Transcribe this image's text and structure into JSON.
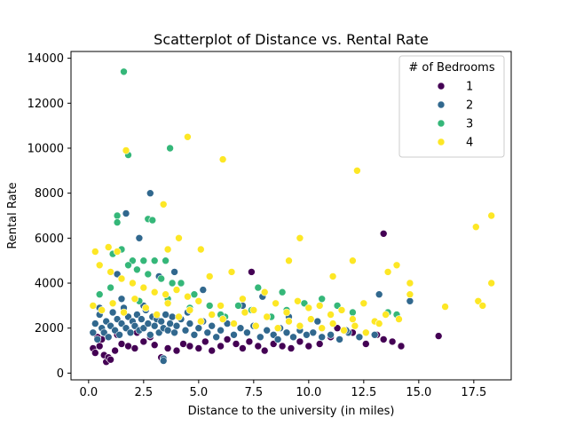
{
  "chart_data": {
    "type": "scatter",
    "title": "Scatterplot of Distance vs. Rental Rate",
    "xlabel": "Distance to the university (in miles)",
    "ylabel": "Rental Rate",
    "xlim": [
      -0.8,
      19.2
    ],
    "ylim": [
      -300,
      14300
    ],
    "xticks": [
      0.0,
      2.5,
      5.0,
      7.5,
      10.0,
      12.5,
      15.0,
      17.5
    ],
    "xtick_labels": [
      "0.0",
      "2.5",
      "5.0",
      "7.5",
      "10.0",
      "12.5",
      "15.0",
      "17.5"
    ],
    "yticks": [
      0,
      2000,
      4000,
      6000,
      8000,
      10000,
      12000,
      14000
    ],
    "ytick_labels": [
      "0",
      "2000",
      "4000",
      "6000",
      "8000",
      "10000",
      "12000",
      "14000"
    ],
    "grid": false,
    "legend": {
      "title": "# of Bedrooms",
      "placement": "top-right",
      "entries": [
        "1",
        "2",
        "3",
        "4"
      ]
    },
    "colors": {
      "1": "#440154",
      "2": "#31688e",
      "3": "#35b779",
      "4": "#fde725"
    },
    "series": [
      {
        "name": "1",
        "points": [
          [
            0.2,
            1100
          ],
          [
            0.3,
            900
          ],
          [
            0.5,
            1200
          ],
          [
            0.6,
            1500
          ],
          [
            0.7,
            800
          ],
          [
            0.8,
            500
          ],
          [
            0.9,
            700
          ],
          [
            1.0,
            600
          ],
          [
            1.2,
            1000
          ],
          [
            1.5,
            1300
          ],
          [
            1.8,
            1200
          ],
          [
            2.1,
            1100
          ],
          [
            2.5,
            1400
          ],
          [
            2.8,
            1600
          ],
          [
            3.0,
            1250
          ],
          [
            3.3,
            700
          ],
          [
            3.6,
            1100
          ],
          [
            4.0,
            1000
          ],
          [
            4.3,
            1300
          ],
          [
            4.6,
            1200
          ],
          [
            5.0,
            1100
          ],
          [
            5.3,
            1400
          ],
          [
            5.6,
            1000
          ],
          [
            6.0,
            1200
          ],
          [
            6.3,
            1500
          ],
          [
            6.7,
            1300
          ],
          [
            7.0,
            1100
          ],
          [
            7.3,
            1400
          ],
          [
            7.4,
            4500
          ],
          [
            7.7,
            1200
          ],
          [
            8.0,
            1000
          ],
          [
            8.4,
            1300
          ],
          [
            8.8,
            1200
          ],
          [
            9.2,
            1100
          ],
          [
            9.6,
            1400
          ],
          [
            10.0,
            1200
          ],
          [
            10.5,
            1300
          ],
          [
            11.0,
            1600
          ],
          [
            11.3,
            2000
          ],
          [
            12.0,
            1800
          ],
          [
            12.6,
            1300
          ],
          [
            13.1,
            1700
          ],
          [
            13.4,
            1500
          ],
          [
            13.4,
            6200
          ],
          [
            13.8,
            1400
          ],
          [
            14.2,
            1200
          ],
          [
            15.9,
            1650
          ],
          [
            0.4,
            1600
          ],
          [
            1.3,
            1700
          ],
          [
            2.2,
            1800
          ]
        ]
      },
      {
        "name": "2",
        "points": [
          [
            0.2,
            1800
          ],
          [
            0.3,
            2200
          ],
          [
            0.4,
            1500
          ],
          [
            0.5,
            2600
          ],
          [
            0.6,
            2000
          ],
          [
            0.7,
            1800
          ],
          [
            0.8,
            2300
          ],
          [
            0.9,
            1600
          ],
          [
            1.0,
            2100
          ],
          [
            1.1,
            2700
          ],
          [
            1.2,
            1900
          ],
          [
            1.3,
            2400
          ],
          [
            1.4,
            1700
          ],
          [
            1.5,
            2200
          ],
          [
            1.6,
            2900
          ],
          [
            1.7,
            2000
          ],
          [
            1.8,
            2500
          ],
          [
            1.9,
            1800
          ],
          [
            2.0,
            2300
          ],
          [
            2.1,
            2100
          ],
          [
            2.2,
            2600
          ],
          [
            2.3,
            1900
          ],
          [
            2.4,
            2400
          ],
          [
            2.5,
            2000
          ],
          [
            2.6,
            2800
          ],
          [
            2.7,
            2200
          ],
          [
            2.8,
            1700
          ],
          [
            2.9,
            2500
          ],
          [
            3.0,
            2100
          ],
          [
            3.1,
            2400
          ],
          [
            3.2,
            1800
          ],
          [
            3.3,
            2300
          ],
          [
            3.4,
            2000
          ],
          [
            3.5,
            2600
          ],
          [
            3.6,
            1900
          ],
          [
            3.7,
            2200
          ],
          [
            3.8,
            2500
          ],
          [
            3.9,
            1800
          ],
          [
            4.0,
            2100
          ],
          [
            4.2,
            2400
          ],
          [
            4.4,
            1900
          ],
          [
            4.6,
            2200
          ],
          [
            4.8,
            1700
          ],
          [
            5.0,
            2000
          ],
          [
            5.2,
            2300
          ],
          [
            5.4,
            1800
          ],
          [
            5.6,
            2100
          ],
          [
            5.8,
            1600
          ],
          [
            6.0,
            1900
          ],
          [
            6.3,
            2200
          ],
          [
            6.6,
            1700
          ],
          [
            6.9,
            2000
          ],
          [
            7.2,
            1800
          ],
          [
            7.5,
            2100
          ],
          [
            7.8,
            1600
          ],
          [
            8.1,
            1900
          ],
          [
            8.4,
            1700
          ],
          [
            8.7,
            2000
          ],
          [
            9.0,
            1800
          ],
          [
            9.3,
            1600
          ],
          [
            9.6,
            1900
          ],
          [
            9.9,
            1700
          ],
          [
            10.2,
            1800
          ],
          [
            10.6,
            1600
          ],
          [
            11.0,
            1700
          ],
          [
            11.4,
            1500
          ],
          [
            11.8,
            1800
          ],
          [
            12.3,
            1600
          ],
          [
            13.0,
            1700
          ],
          [
            13.2,
            3500
          ],
          [
            1.3,
            4400
          ],
          [
            1.7,
            7100
          ],
          [
            2.3,
            6000
          ],
          [
            2.8,
            8000
          ],
          [
            3.2,
            4300
          ],
          [
            3.4,
            650
          ],
          [
            3.4,
            550
          ],
          [
            3.9,
            4500
          ],
          [
            5.2,
            3700
          ],
          [
            7.0,
            3000
          ],
          [
            7.9,
            3400
          ],
          [
            8.6,
            1500
          ],
          [
            9.1,
            2500
          ],
          [
            10.4,
            2300
          ],
          [
            11.7,
            1900
          ],
          [
            14.6,
            3200
          ],
          [
            0.5,
            2900
          ],
          [
            1.5,
            3300
          ],
          [
            2.5,
            3000
          ],
          [
            4.5,
            2700
          ]
        ]
      },
      {
        "name": "3",
        "points": [
          [
            1.6,
            13400
          ],
          [
            1.8,
            9700
          ],
          [
            3.7,
            10000
          ],
          [
            1.3,
            7000
          ],
          [
            1.3,
            6700
          ],
          [
            2.7,
            6850
          ],
          [
            2.9,
            6800
          ],
          [
            1.5,
            5500
          ],
          [
            2.0,
            5000
          ],
          [
            2.5,
            5000
          ],
          [
            3.0,
            5000
          ],
          [
            3.5,
            5000
          ],
          [
            1.1,
            5300
          ],
          [
            1.8,
            4800
          ],
          [
            2.2,
            4600
          ],
          [
            2.7,
            4400
          ],
          [
            3.3,
            4200
          ],
          [
            3.8,
            4000
          ],
          [
            4.2,
            4000
          ],
          [
            4.8,
            3500
          ],
          [
            5.5,
            3000
          ],
          [
            6.2,
            2500
          ],
          [
            6.8,
            3000
          ],
          [
            7.4,
            2800
          ],
          [
            7.7,
            3800
          ],
          [
            8.3,
            2500
          ],
          [
            9.0,
            2800
          ],
          [
            9.8,
            3100
          ],
          [
            10.6,
            3300
          ],
          [
            11.3,
            3000
          ],
          [
            12.0,
            2700
          ],
          [
            13.6,
            2700
          ],
          [
            14.0,
            2600
          ],
          [
            0.5,
            3500
          ],
          [
            1.0,
            3800
          ],
          [
            2.3,
            3200
          ],
          [
            3.6,
            3300
          ],
          [
            4.6,
            2900
          ],
          [
            6.0,
            2600
          ],
          [
            8.8,
            3600
          ]
        ]
      },
      {
        "name": "4",
        "points": [
          [
            1.7,
            9900
          ],
          [
            4.5,
            10500
          ],
          [
            6.1,
            9500
          ],
          [
            12.2,
            9000
          ],
          [
            3.4,
            7500
          ],
          [
            18.3,
            7000
          ],
          [
            17.6,
            6500
          ],
          [
            9.6,
            6000
          ],
          [
            4.1,
            6000
          ],
          [
            0.3,
            5400
          ],
          [
            0.9,
            5600
          ],
          [
            1.3,
            5400
          ],
          [
            3.6,
            5500
          ],
          [
            5.1,
            5500
          ],
          [
            12.0,
            5000
          ],
          [
            14.0,
            4800
          ],
          [
            13.6,
            4500
          ],
          [
            11.1,
            4300
          ],
          [
            9.1,
            5000
          ],
          [
            18.3,
            4000
          ],
          [
            14.6,
            4000
          ],
          [
            0.5,
            4800
          ],
          [
            1.0,
            4500
          ],
          [
            1.5,
            4200
          ],
          [
            2.0,
            4000
          ],
          [
            2.5,
            3800
          ],
          [
            3.0,
            3600
          ],
          [
            3.5,
            3500
          ],
          [
            4.0,
            3700
          ],
          [
            4.5,
            3400
          ],
          [
            5.0,
            3200
          ],
          [
            5.5,
            4300
          ],
          [
            6.0,
            3000
          ],
          [
            6.5,
            4500
          ],
          [
            7.0,
            3300
          ],
          [
            7.5,
            2800
          ],
          [
            8.0,
            3600
          ],
          [
            8.5,
            3100
          ],
          [
            9.0,
            2700
          ],
          [
            9.5,
            3200
          ],
          [
            10.0,
            2900
          ],
          [
            10.5,
            3000
          ],
          [
            11.0,
            2600
          ],
          [
            11.5,
            2800
          ],
          [
            12.0,
            2400
          ],
          [
            12.5,
            3100
          ],
          [
            13.0,
            2300
          ],
          [
            13.5,
            2600
          ],
          [
            14.6,
            3500
          ],
          [
            16.2,
            2950
          ],
          [
            17.7,
            3200
          ],
          [
            17.9,
            3000
          ],
          [
            0.2,
            3000
          ],
          [
            0.6,
            2800
          ],
          [
            1.1,
            3100
          ],
          [
            1.6,
            2700
          ],
          [
            2.1,
            3300
          ],
          [
            2.6,
            2900
          ],
          [
            3.1,
            2600
          ],
          [
            3.6,
            3100
          ],
          [
            4.1,
            2500
          ],
          [
            4.6,
            2800
          ],
          [
            5.1,
            2300
          ],
          [
            5.6,
            2600
          ],
          [
            6.1,
            2400
          ],
          [
            6.6,
            2200
          ],
          [
            7.1,
            2700
          ],
          [
            7.6,
            2100
          ],
          [
            8.1,
            2500
          ],
          [
            8.6,
            2000
          ],
          [
            9.1,
            2300
          ],
          [
            9.6,
            2100
          ],
          [
            10.1,
            2400
          ],
          [
            10.6,
            2000
          ],
          [
            11.1,
            2200
          ],
          [
            11.6,
            1900
          ],
          [
            12.1,
            2100
          ],
          [
            12.6,
            1800
          ],
          [
            13.2,
            2200
          ],
          [
            14.1,
            2400
          ]
        ]
      }
    ]
  }
}
